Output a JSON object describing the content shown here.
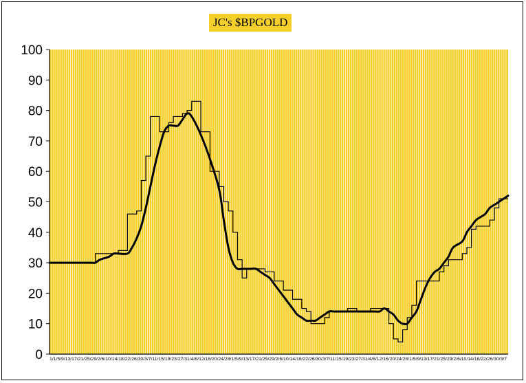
{
  "chart_data": {
    "type": "line",
    "title": "JC's $BPGOLD",
    "xlabel": "",
    "ylabel": "",
    "ylim": [
      0,
      100
    ],
    "yticks": [
      0,
      10,
      20,
      30,
      40,
      50,
      60,
      70,
      80,
      90,
      100
    ],
    "xtick_text": "1/1/5/9/13/17/21/25/29/2/6/10/14/18/22/26/30/3/7/11/15/19/23/27/31/4/8/12/16/20/24/28/1/5/9/13/17/21/25/29/2/6/10/14/18/22/26/30/3/7/11/15/19/23/27/31/4/8/12/16/20/24/28/1/5/9/13/17/21/25/29/2/6/10/14/18/22/26/30/3/7",
    "grid": "vertical",
    "legend": "none",
    "colors": {
      "plot_bg": "#F5D02A",
      "grid": "#FFFFFF",
      "line": "#000000"
    },
    "x": [
      0,
      4,
      9,
      10,
      11,
      13,
      14,
      15,
      17,
      18,
      19,
      20,
      21,
      22,
      23,
      24,
      25,
      26,
      27,
      28,
      29,
      30,
      31,
      33,
      35,
      37,
      38,
      39,
      40,
      41,
      42,
      43,
      44,
      45,
      46,
      47,
      48,
      49,
      50,
      51,
      52,
      53,
      54,
      55,
      56,
      57,
      58,
      59,
      60,
      61,
      62,
      63,
      64,
      65,
      66,
      67,
      68,
      69,
      70,
      71,
      72,
      73,
      74,
      75,
      76,
      77,
      78,
      79,
      80,
      81,
      82,
      83,
      84,
      85,
      86,
      87,
      88,
      90,
      91,
      92,
      93,
      94,
      95,
      96,
      97,
      98,
      100
    ],
    "series": [
      {
        "style": "thin",
        "values": [
          30,
          30,
          30,
          33,
          33,
          33,
          33,
          34,
          46,
          46,
          47,
          57,
          65,
          78,
          78,
          73,
          73,
          76,
          78,
          78,
          79,
          80,
          83,
          73,
          60,
          55,
          50,
          47,
          40,
          31,
          25,
          28,
          28,
          28,
          28,
          27,
          27,
          24,
          24,
          21,
          21,
          18,
          18,
          15,
          14,
          10,
          10,
          10,
          12,
          14,
          14,
          14,
          14,
          15,
          15,
          14,
          14,
          14,
          15,
          15,
          15,
          15,
          10,
          5,
          4,
          8,
          12,
          16,
          24,
          24,
          24,
          24,
          24,
          27,
          29,
          31,
          31,
          33,
          35,
          41,
          42,
          42,
          42,
          44,
          48,
          51,
          51
        ]
      },
      {
        "style": "thick",
        "values": [
          30,
          30,
          30,
          30,
          31,
          32,
          33,
          33,
          33,
          35,
          38,
          42,
          48,
          55,
          62,
          68,
          73,
          75,
          75,
          75,
          77,
          79,
          78,
          72,
          64,
          54,
          44,
          35,
          30,
          28,
          28,
          28,
          28,
          28,
          27,
          26,
          25,
          23,
          21,
          19,
          17,
          15,
          13,
          12,
          11,
          11,
          11,
          12,
          13,
          14,
          14,
          14,
          14,
          14,
          14,
          14,
          14,
          14,
          14,
          14,
          14,
          15,
          14,
          13,
          11,
          10,
          10,
          12,
          14,
          18,
          22,
          25,
          27,
          28,
          30,
          32,
          35,
          37,
          40,
          42,
          44,
          45,
          46,
          48,
          49,
          50,
          52
        ]
      }
    ]
  }
}
